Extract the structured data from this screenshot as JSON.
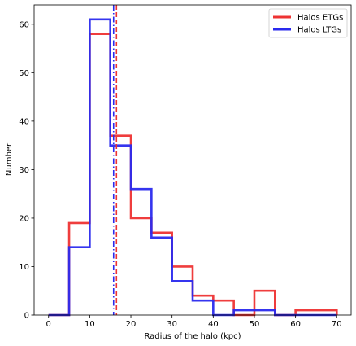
{
  "chart_data": {
    "type": "histogram",
    "xlabel": "Radius of the halo (kpc)",
    "ylabel": "Number",
    "xlim": [
      -3.5,
      73.5
    ],
    "ylim": [
      0,
      64
    ],
    "x_ticks": [
      0,
      10,
      20,
      30,
      40,
      50,
      60,
      70
    ],
    "y_ticks": [
      0,
      10,
      20,
      30,
      40,
      50,
      60
    ],
    "grid": false,
    "legend_position": "upper right",
    "bin_edges": [
      0,
      5,
      10,
      15,
      20,
      25,
      30,
      35,
      40,
      45,
      50,
      55,
      60,
      65,
      70
    ],
    "series": [
      {
        "name": "Halos ETGs",
        "color": "#ee3333",
        "style": "step",
        "counts": [
          0,
          19,
          58,
          37,
          20,
          17,
          10,
          4,
          3,
          0,
          5,
          0,
          1,
          1
        ],
        "median_line": {
          "x": 16.5,
          "style": "dashed"
        }
      },
      {
        "name": "Halos LTGs",
        "color": "#2a2aee",
        "style": "step",
        "counts": [
          0,
          14,
          61,
          35,
          26,
          16,
          7,
          3,
          0,
          1,
          1,
          0,
          0,
          0
        ],
        "median_line": {
          "x": 15.8,
          "style": "dashdot"
        }
      }
    ]
  }
}
